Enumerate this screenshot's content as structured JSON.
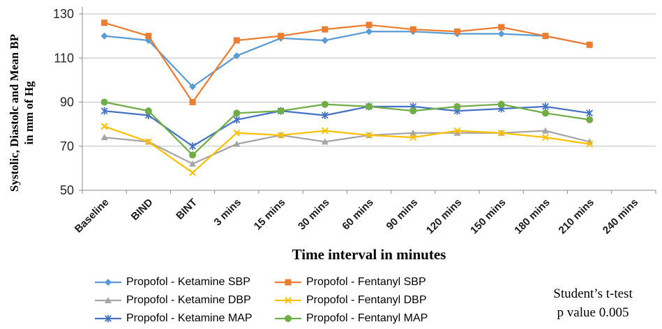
{
  "chart_data": {
    "type": "line",
    "title": "",
    "xlabel": "Time interval in minutes",
    "ylabel": "Systolic, Diastolc and Mean BP in mm of Hg",
    "ylabel_line1": "Systolic, Diastolc and Mean BP",
    "ylabel_line2": "in mm of Hg",
    "ylim": [
      50,
      130
    ],
    "yticks": [
      50,
      70,
      90,
      110,
      130
    ],
    "grid": true,
    "legend_position": "bottom",
    "categories": [
      "Baseline",
      "BIND",
      "BINT",
      "3 mins",
      "15 mins",
      "30 mins",
      "60 mins",
      "90 mins",
      "120 mins",
      "150 mins",
      "180 mins",
      "210 mins",
      "240 mins"
    ],
    "series": [
      {
        "name": "Propofol - Ketamine SBP",
        "color": "#5B9BD5",
        "marker": "diamond",
        "values": [
          120,
          118,
          97,
          111,
          119,
          118,
          122,
          122,
          121,
          121,
          120,
          116,
          null
        ]
      },
      {
        "name": "Propofol - Fentanyl SBP",
        "color": "#ED7D31",
        "marker": "square",
        "values": [
          126,
          120,
          90,
          118,
          120,
          123,
          125,
          123,
          122,
          124,
          120,
          116,
          null
        ]
      },
      {
        "name": "Propofol - Ketamine DBP",
        "color": "#A5A5A5",
        "marker": "triangle",
        "values": [
          74,
          72,
          62,
          71,
          75,
          72,
          75,
          76,
          76,
          76,
          77,
          72,
          null
        ]
      },
      {
        "name": "Propofol - Fentanyl DBP",
        "color": "#FFC000",
        "marker": "x",
        "values": [
          79,
          72,
          58,
          76,
          75,
          77,
          75,
          74,
          77,
          76,
          74,
          71,
          null
        ]
      },
      {
        "name": "Propofol - Ketamine MAP",
        "color": "#4472C4",
        "marker": "asterisk",
        "values": [
          86,
          84,
          70,
          82,
          86,
          84,
          88,
          88,
          86,
          87,
          88,
          85,
          null
        ]
      },
      {
        "name": "Propofol - Fentanyl MAP",
        "color": "#70AD47",
        "marker": "circle",
        "values": [
          90,
          86,
          66,
          85,
          86,
          89,
          88,
          86,
          88,
          89,
          85,
          82,
          null
        ]
      }
    ],
    "annotation": {
      "line1": "Student’s t-test",
      "line2": "p value 0.005"
    }
  }
}
